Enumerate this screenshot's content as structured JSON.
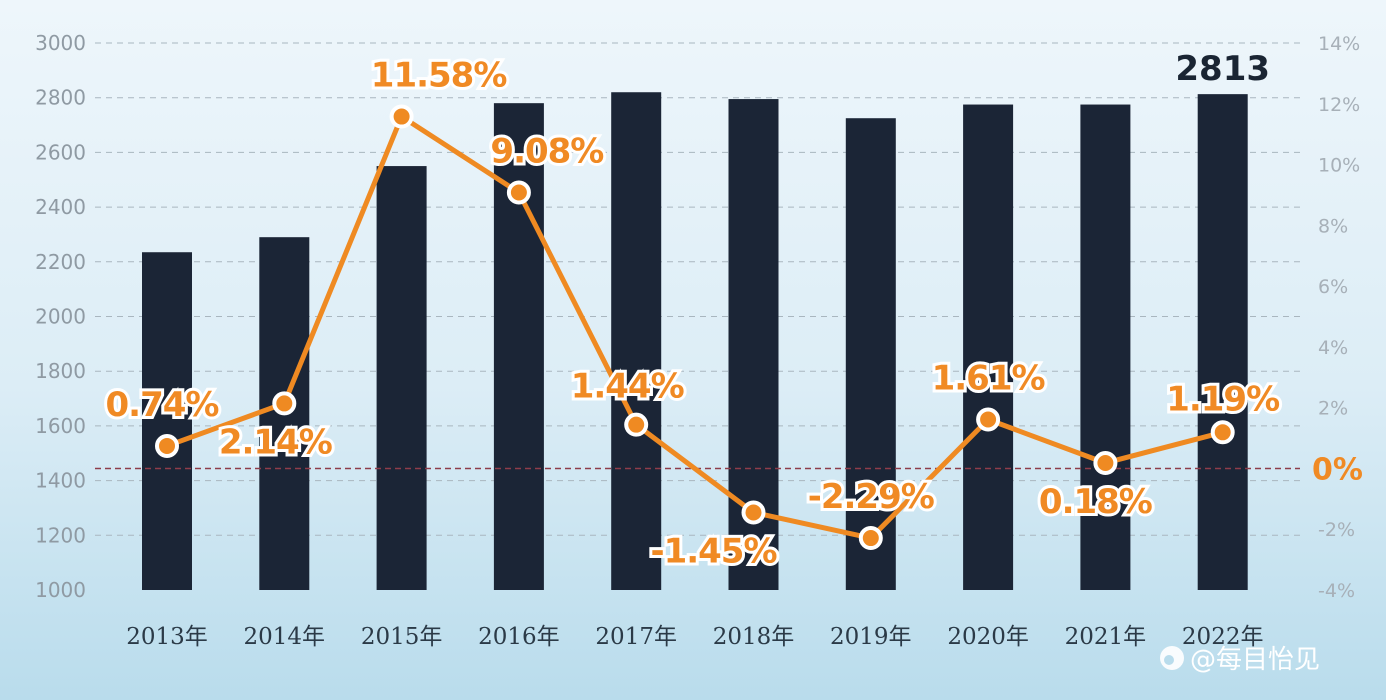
{
  "chart_data": {
    "type": "bar+line",
    "categories": [
      "2013年",
      "2014年",
      "2015年",
      "2016年",
      "2017年",
      "2018年",
      "2019年",
      "2020年",
      "2021年",
      "2022年"
    ],
    "series": [
      {
        "name": "bars",
        "axis": "left",
        "values": [
          2235,
          2290,
          2550,
          2780,
          2820,
          2795,
          2725,
          2775,
          2775,
          2813
        ]
      },
      {
        "name": "growth_rate",
        "axis": "right",
        "unit": "%",
        "values": [
          0.74,
          2.14,
          11.58,
          9.08,
          1.44,
          -1.45,
          -2.29,
          1.61,
          0.18,
          1.19
        ]
      }
    ],
    "rate_labels": [
      "0.74%",
      "2.14%",
      "11.58%",
      "9.08%",
      "1.44%",
      "-1.45%",
      "-2.29%",
      "1.61%",
      "0.18%",
      "1.19%"
    ],
    "bar_top_label": "2813",
    "ylim_left": [
      1000,
      3000
    ],
    "yticks_left": [
      "1000",
      "1200",
      "1400",
      "1600",
      "1800",
      "2000",
      "2200",
      "2400",
      "2600",
      "2800",
      "3000"
    ],
    "ylim_right": [
      -4,
      14
    ],
    "yticks_right": [
      "-4%",
      "-2%",
      "0%",
      "2%",
      "4%",
      "6%",
      "8%",
      "10%",
      "12%",
      "14%"
    ],
    "grid": true,
    "colors": {
      "bar": "#1b2536",
      "line": "#ef8a22",
      "zero_line": "#8e3d4a"
    }
  },
  "watermark": {
    "source": "@每目怡见"
  }
}
